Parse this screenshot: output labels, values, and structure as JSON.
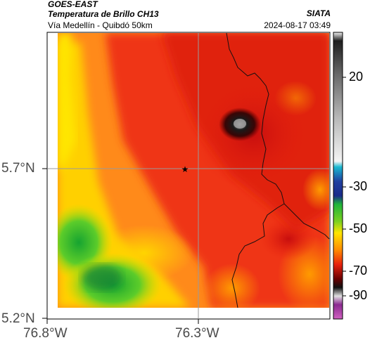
{
  "header": {
    "satellite": "GOES-EAST",
    "product": "Temperatura de Brillo CH13",
    "region": "Vía Medellín - Quibdó 50km",
    "organization": "SIATA",
    "timestamp": "2024-08-17 03:49"
  },
  "map": {
    "lat_ticks": [
      "5.7°N",
      "5.2°N"
    ],
    "lon_ticks": [
      "76.8°W",
      "76.3°W"
    ],
    "marker_symbol": "★"
  },
  "colorbar": {
    "labels": [
      "20",
      "-30",
      "-50",
      "-70",
      "-90"
    ],
    "colors": {
      "warm_white": "#f4f4f4",
      "gray": "#7a7a7a",
      "black": "#101010",
      "cyan": "#19b8d0",
      "blue": "#2a3fa0",
      "green": "#1fb43a",
      "yellow": "#ffe400",
      "orange": "#ff8a00",
      "red": "#e8220e",
      "dark_red": "#6a0000",
      "purple": "#8a2a90",
      "magenta": "#d060c0"
    }
  }
}
